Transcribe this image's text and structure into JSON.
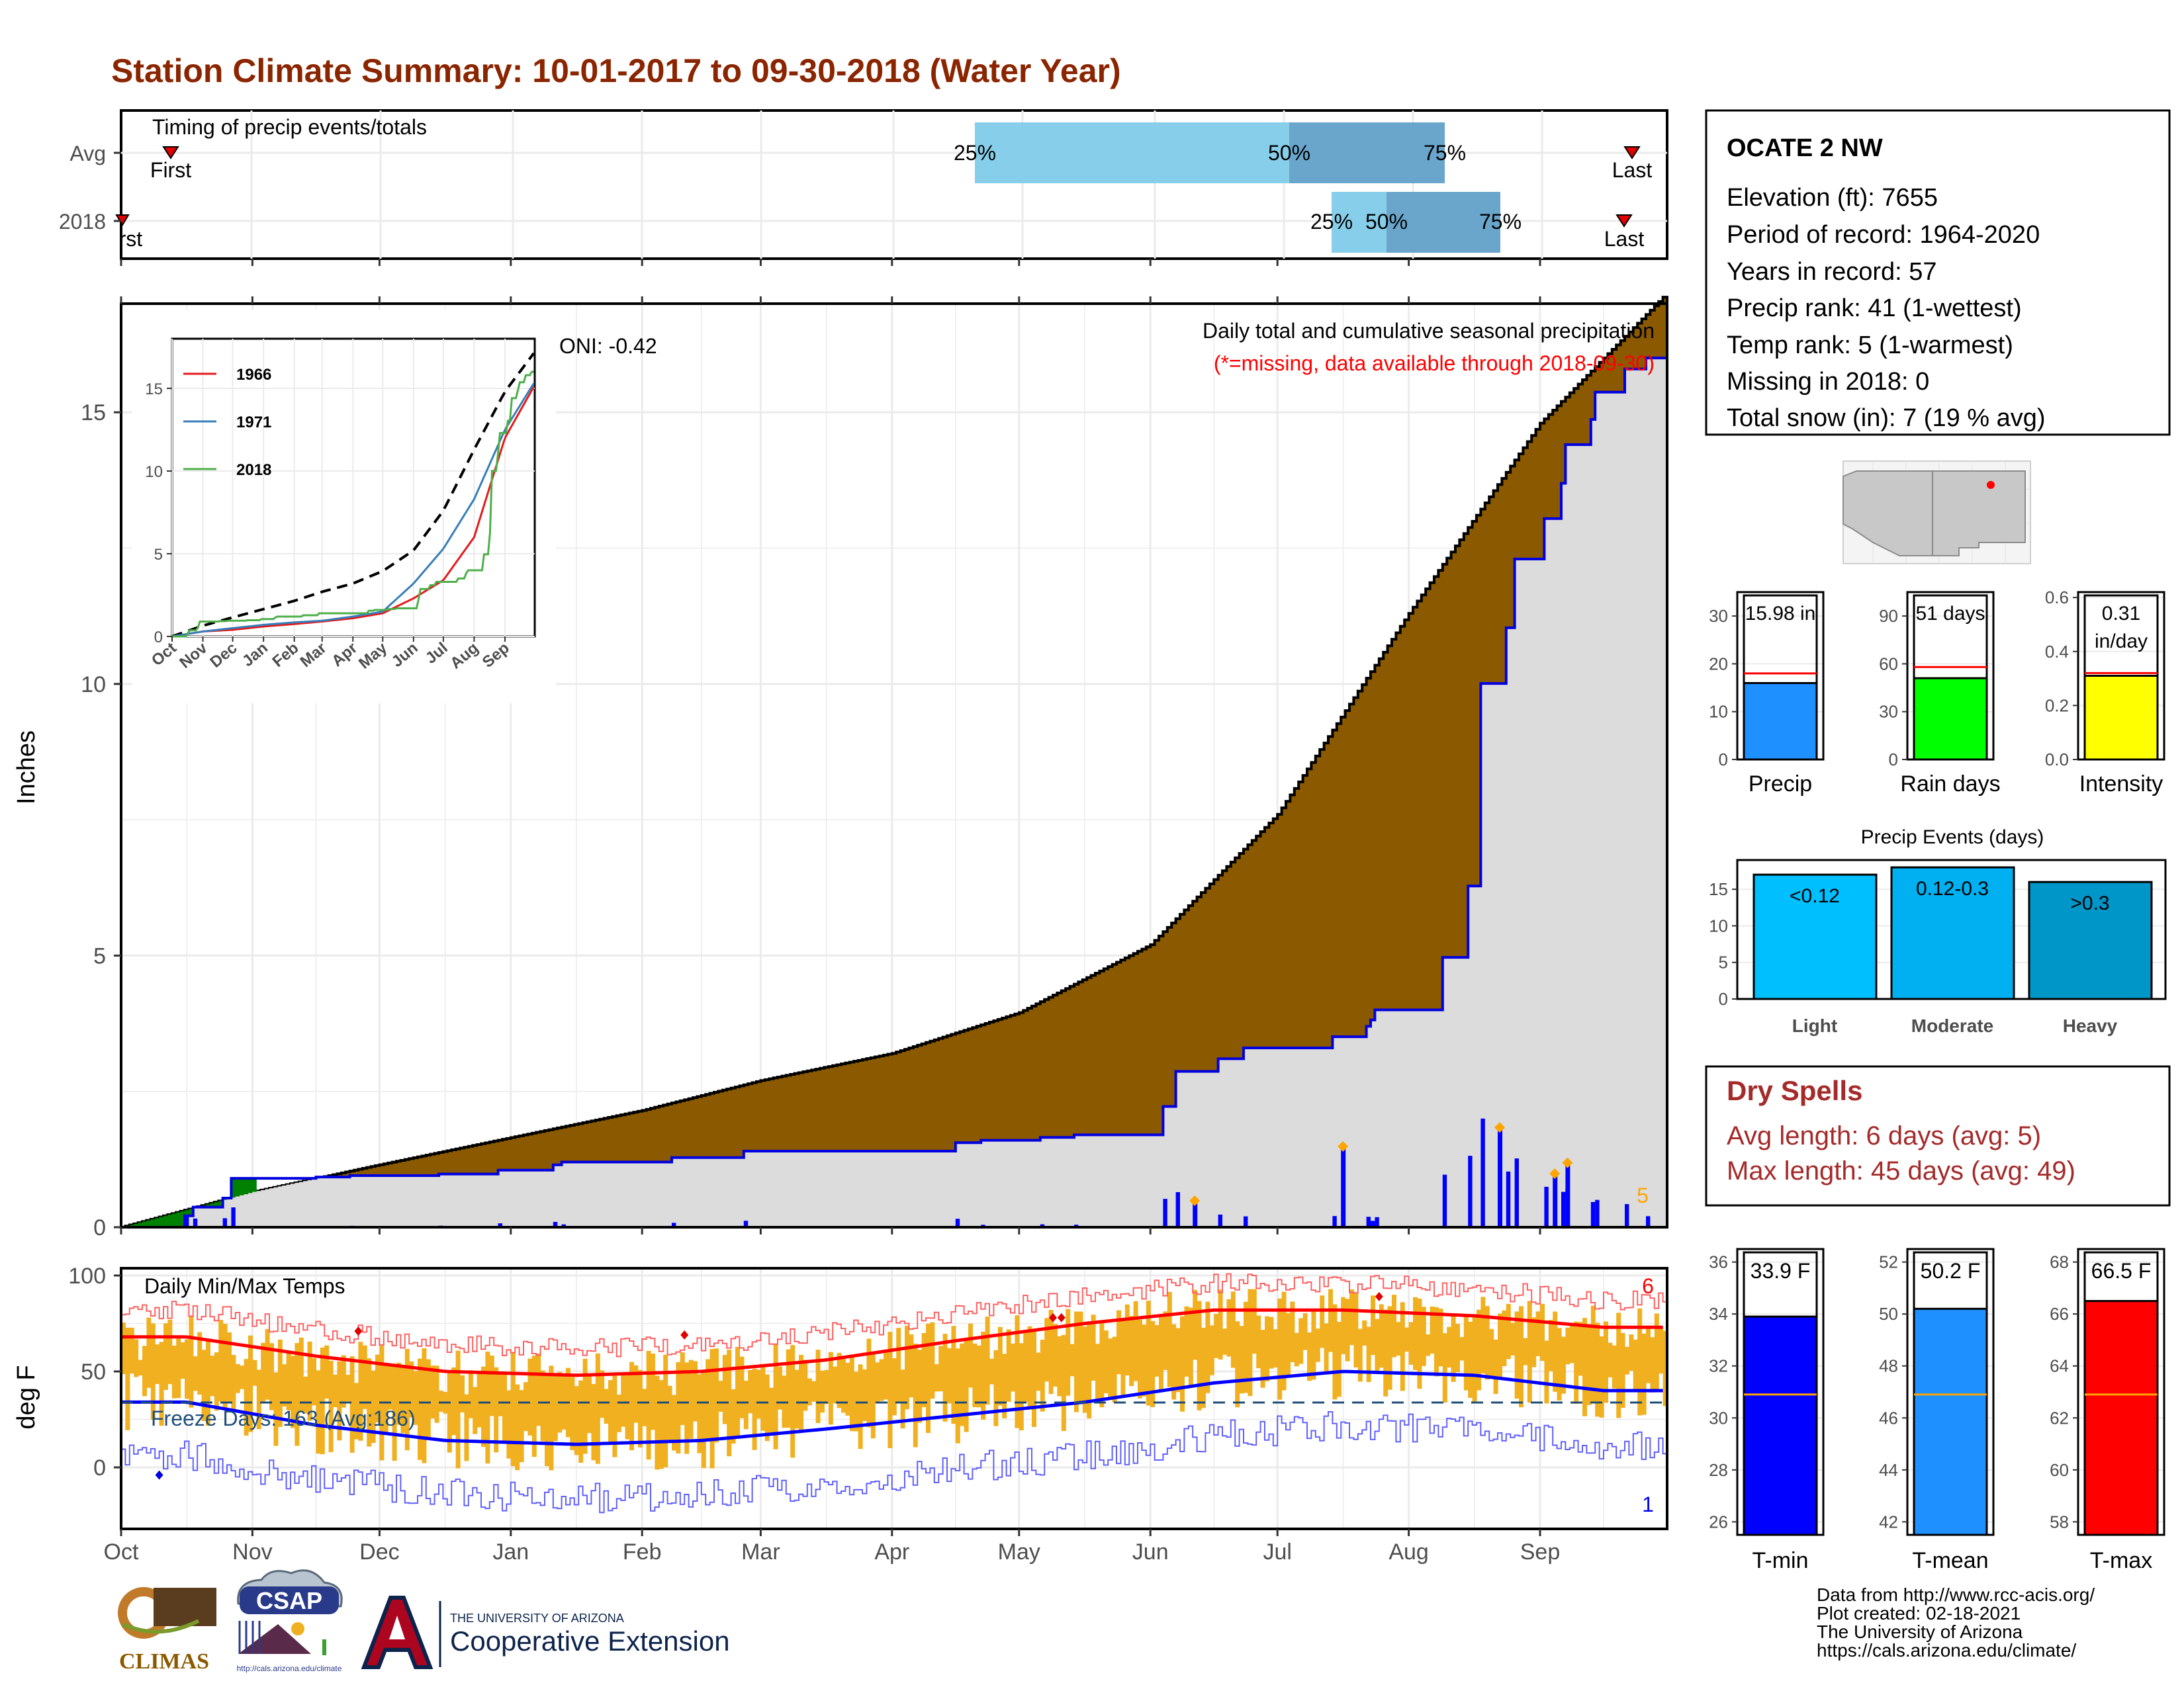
{
  "title": "Station Climate Summary: 10-01-2017 to 09-30-2018 (Water Year)",
  "colors": {
    "title": "#8b2500",
    "cum_area": "#8b5a00",
    "avg_area": "#dcdcdc",
    "daily_bar": "#0000ff",
    "temp_bar": "#f0b020",
    "tmax_line": "#ff0000",
    "tmin_line": "#0000ff",
    "dry_spells": "#a52a2a",
    "timing_light": "#87ceeb",
    "timing_dark": "#6aa6cc",
    "precip_fill": "#1e90ff",
    "raindays_fill": "#00ff00",
    "intensity_fill": "#ffff00",
    "events_fill": [
      "#00bfff",
      "#00b0f0",
      "#0096c8"
    ],
    "tmin_fill": "#0000ff",
    "tmean_fill": "#1e90ff",
    "tmax_fill": "#ff0000"
  },
  "timing": {
    "panel_label": "Timing of precip events/totals",
    "rows": [
      "Avg",
      "2018"
    ],
    "avg": {
      "first": "First",
      "last": "Last",
      "p25": "25%",
      "p50": "50%",
      "p75": "75%"
    },
    "y2018": {
      "first": "First",
      "last": "Last",
      "p25": "25%",
      "p50": "50%",
      "p75": "75%"
    }
  },
  "main": {
    "ylabel": "Inches",
    "yticks": [
      "0",
      "5",
      "10",
      "15"
    ],
    "legend_title": "Daily total and cumulative seasonal precipitation",
    "legend_sub": "(*=missing, data available through 2018-09-30)",
    "oni": "ONI: -0.42",
    "count_label": "5"
  },
  "inset": {
    "yticks": [
      "0",
      "5",
      "10",
      "15"
    ],
    "months": [
      "Oct",
      "Nov",
      "Dec",
      "Jan",
      "Feb",
      "Mar",
      "Apr",
      "May",
      "Jun",
      "Jul",
      "Aug",
      "Sep"
    ],
    "legend": [
      {
        "name": "1966",
        "color": "#e41a1c"
      },
      {
        "name": "1971",
        "color": "#377eb8"
      },
      {
        "name": "2018",
        "color": "#4daf4a"
      }
    ]
  },
  "temps": {
    "ylabel": "deg F",
    "yticks": [
      "0",
      "50",
      "100"
    ],
    "panel_label": "Daily Min/Max Temps",
    "freeze": "Freeze Days: 163 (Avg:186)",
    "max_count": "6",
    "min_count": "1"
  },
  "months": [
    "Oct",
    "Nov",
    "Dec",
    "Jan",
    "Feb",
    "Mar",
    "Apr",
    "May",
    "Jun",
    "Jul",
    "Aug",
    "Sep"
  ],
  "station": {
    "name": "OCATE 2 NW",
    "lines": [
      "Elevation (ft): 7655",
      "Period of record: 1964-2020",
      "Years in record: 57",
      "Precip rank: 41 (1-wettest)",
      "Temp rank: 5 (1-warmest)",
      "Missing in 2018: 0",
      "Total snow (in): 7 (19 % avg)"
    ]
  },
  "gauges": {
    "precip": {
      "label": "Precip",
      "value_text": "15.98 in",
      "yticks": [
        "0",
        "10",
        "20",
        "30"
      ]
    },
    "raindays": {
      "label": "Rain days",
      "value_text": "51 days",
      "yticks": [
        "0",
        "30",
        "60",
        "90"
      ]
    },
    "intensity": {
      "label": "Intensity",
      "value_text": "0.31",
      "value_text2": "in/day",
      "yticks": [
        "0.0",
        "0.2",
        "0.4",
        "0.6"
      ]
    }
  },
  "events": {
    "title": "Precip Events (days)",
    "yticks": [
      "0",
      "5",
      "10",
      "15"
    ],
    "bars": [
      {
        "cat": "Light",
        "label": "<0.12"
      },
      {
        "cat": "Moderate",
        "label": "0.12-0.3"
      },
      {
        "cat": "Heavy",
        "label": ">0.3"
      }
    ]
  },
  "dry": {
    "title": "Dry Spells",
    "avg": "Avg length: 6 days (avg: 5)",
    "max": "Max length: 45 days (avg: 49)"
  },
  "tgauges": {
    "tmin": {
      "label": "T-min",
      "value_text": "33.9 F",
      "yticks": [
        "26",
        "28",
        "30",
        "32",
        "34",
        "36"
      ]
    },
    "tmean": {
      "label": "T-mean",
      "value_text": "50.2 F",
      "yticks": [
        "42",
        "44",
        "46",
        "48",
        "50",
        "52"
      ]
    },
    "tmax": {
      "label": "T-max",
      "value_text": "66.5 F",
      "yticks": [
        "58",
        "60",
        "62",
        "64",
        "66",
        "68"
      ]
    }
  },
  "footer": {
    "lines": [
      "Data from http://www.rcc-acis.org/",
      "Plot created: 02-18-2021",
      "The University of Arizona",
      "https://cals.arizona.edu/climate/"
    ],
    "climas": "CLIMAS",
    "csap": "CSAP",
    "csap_url": "http://cals.arizona.edu/climate",
    "ua_small": "THE UNIVERSITY OF ARIZONA",
    "ua_big": "Cooperative Extension"
  },
  "chart_data": [
    {
      "type": "area",
      "title": "Daily total and cumulative seasonal precipitation",
      "ylabel": "Inches",
      "ylim": [
        0,
        17
      ],
      "x_months": [
        "Oct",
        "Nov",
        "Dec",
        "Jan",
        "Feb",
        "Mar",
        "Apr",
        "May",
        "Jun",
        "Jul",
        "Aug",
        "Sep"
      ],
      "avg_cumulative_month_end": [
        0.65,
        1.15,
        1.65,
        2.15,
        2.7,
        3.2,
        3.95,
        5.2,
        7.6,
        11.3,
        14.8,
        17.2
      ],
      "y2018_cumulative_month_end": [
        0.9,
        0.95,
        1.05,
        1.2,
        1.4,
        1.4,
        1.6,
        1.7,
        3.3,
        4.0,
        12.3,
        16.0
      ],
      "daily_precip_peaks": [
        {
          "date": "2018-06-11",
          "in": 0.45
        },
        {
          "date": "2018-07-16",
          "in": 1.45
        },
        {
          "date": "2018-08-22",
          "in": 1.8
        },
        {
          "date": "2018-09-04",
          "in": 0.95
        },
        {
          "date": "2018-09-07",
          "in": 1.15
        }
      ]
    },
    {
      "type": "line",
      "title": "",
      "series": [
        {
          "name": "1966",
          "month_end": [
            0.3,
            0.4,
            0.6,
            0.75,
            0.9,
            1.1,
            1.4,
            2.3,
            3.4,
            6.0,
            12.0,
            15.2
          ]
        },
        {
          "name": "1971",
          "month_end": [
            0.3,
            0.5,
            0.7,
            0.85,
            0.95,
            1.2,
            1.5,
            3.2,
            5.3,
            8.3,
            12.5,
            15.4
          ]
        },
        {
          "name": "2018",
          "month_end": [
            0.9,
            0.95,
            1.05,
            1.2,
            1.4,
            1.4,
            1.6,
            1.7,
            3.3,
            4.0,
            12.3,
            16.0
          ]
        }
      ],
      "avg_month_end": [
        0.65,
        1.15,
        1.65,
        2.15,
        2.7,
        3.2,
        3.95,
        5.2,
        7.6,
        11.3,
        14.8,
        17.2
      ],
      "ylim": [
        0,
        18
      ]
    },
    {
      "type": "line",
      "title": "Daily Min/Max Temps",
      "ylabel": "deg F",
      "ylim": [
        -30,
        100
      ],
      "tmax_avg_month": [
        68,
        58,
        50,
        48,
        50,
        56,
        66,
        75,
        82,
        82,
        79,
        73
      ],
      "tmin_avg_month": [
        34,
        22,
        14,
        12,
        14,
        20,
        27,
        34,
        44,
        50,
        48,
        40
      ],
      "freeze_threshold": 32
    },
    {
      "type": "bar",
      "categories": [
        "Precip",
        "Rain days",
        "Intensity"
      ],
      "values": [
        15.98,
        51,
        0.31
      ],
      "averages": [
        18,
        58,
        0.32
      ]
    },
    {
      "type": "bar",
      "title": "Precip Events (days)",
      "categories": [
        "Light",
        "Moderate",
        "Heavy"
      ],
      "values": [
        17,
        18,
        16
      ]
    },
    {
      "type": "bar",
      "categories": [
        "T-min",
        "T-mean",
        "T-max"
      ],
      "values": [
        33.9,
        50.2,
        66.5
      ],
      "averages": [
        30.9,
        46.9,
        62.9
      ]
    }
  ]
}
